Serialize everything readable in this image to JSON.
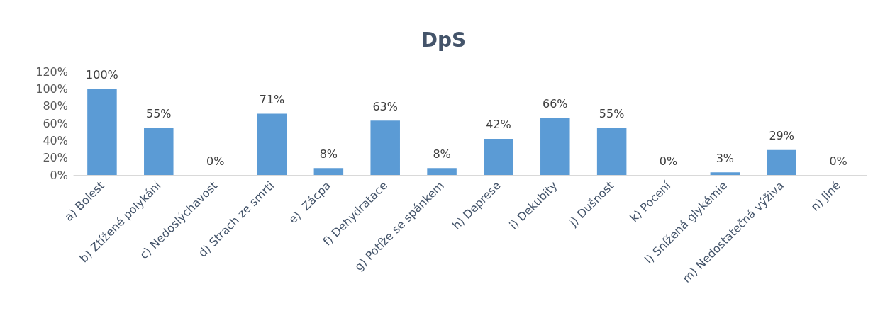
{
  "chart_data": {
    "type": "bar",
    "title": "DpS",
    "categories": [
      "a) Bolest",
      "b) Ztížené polykání",
      "c) Nedoslýchavost",
      "d) Strach ze smrti",
      "e)  Zácpa",
      "f) Dehydratace",
      "g) Potíže se spánkem",
      "h) Deprese",
      "i) Dekubity",
      "j) Dušnost",
      "k) Pocení",
      "l) Snížená glykémie",
      "m) Nedostatečná výživa",
      "n) Jiné"
    ],
    "values": [
      100,
      55,
      0,
      71,
      8,
      63,
      8,
      42,
      66,
      55,
      0,
      3,
      29,
      0
    ],
    "value_labels": [
      "100%",
      "55%",
      "0%",
      "71%",
      "8%",
      "63%",
      "8%",
      "42%",
      "66%",
      "55%",
      "0%",
      "3%",
      "29%",
      "0%"
    ],
    "color": "#5b9bd5",
    "ylim": [
      0,
      120
    ],
    "yticks": [
      {
        "value": 0,
        "label": "0%"
      },
      {
        "value": 20,
        "label": "20%"
      },
      {
        "value": 40,
        "label": "40%"
      },
      {
        "value": 60,
        "label": "60%"
      },
      {
        "value": 80,
        "label": "80%"
      },
      {
        "value": 100,
        "label": "100%"
      },
      {
        "value": 120,
        "label": "120%"
      }
    ],
    "grid": false
  }
}
